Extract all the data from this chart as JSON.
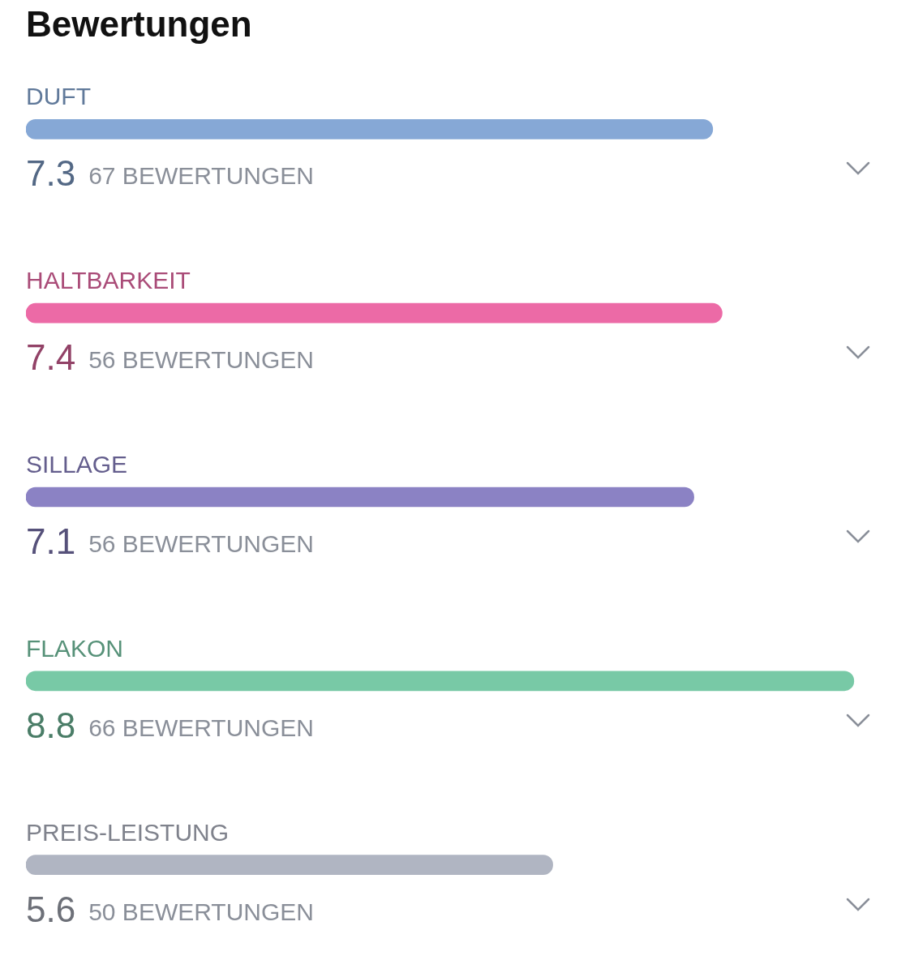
{
  "chart_data": {
    "type": "bar",
    "orientation": "horizontal",
    "title": "Bewertungen",
    "categories": [
      "DUFT",
      "HALTBARKEIT",
      "SILLAGE",
      "FLAKON",
      "PREIS-LEISTUNG"
    ],
    "values": [
      7.3,
      7.4,
      7.1,
      8.8,
      5.6
    ],
    "colors": [
      "#86a8d6",
      "#ec6aa6",
      "#8b82c4",
      "#78c9a6",
      "#b0b5c2"
    ],
    "data_labels": true,
    "annotations": [
      "67 BEWERTUNGEN",
      "56 BEWERTUNGEN",
      "56 BEWERTUNGEN",
      "66 BEWERTUNGEN",
      "50 BEWERTUNGEN"
    ]
  }
}
